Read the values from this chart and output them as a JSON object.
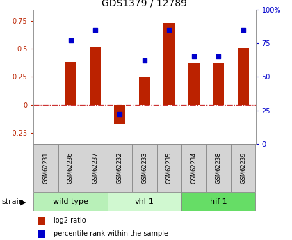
{
  "title": "GDS1379 / 12789",
  "samples": [
    "GSM62231",
    "GSM62236",
    "GSM62237",
    "GSM62232",
    "GSM62233",
    "GSM62235",
    "GSM62234",
    "GSM62238",
    "GSM62239"
  ],
  "log2_ratio": [
    0.0,
    0.38,
    0.52,
    -0.17,
    0.25,
    0.73,
    0.37,
    0.37,
    0.51
  ],
  "percentile": [
    0.0,
    77,
    85,
    22,
    62,
    85,
    65,
    65,
    85
  ],
  "groups": [
    {
      "label": "wild type",
      "start": 0,
      "end": 3,
      "color": "#b8f0b8"
    },
    {
      "label": "vhl-1",
      "start": 3,
      "end": 6,
      "color": "#d0f8d0"
    },
    {
      "label": "hif-1",
      "start": 6,
      "end": 9,
      "color": "#66dd66"
    }
  ],
  "ylim_left": [
    -0.35,
    0.85
  ],
  "ylim_right": [
    0,
    100
  ],
  "yticks_left": [
    -0.25,
    0.0,
    0.25,
    0.5,
    0.75
  ],
  "yticks_right": [
    0,
    25,
    50,
    75,
    100
  ],
  "bar_color": "#bb2200",
  "dot_color": "#0000cc",
  "hline_color": "#cc3333",
  "dotted_line_color": "#333333",
  "title_fontsize": 10,
  "tick_fontsize": 7,
  "sample_fontsize": 6,
  "group_fontsize": 8,
  "legend_fontsize": 7,
  "strain_fontsize": 8
}
